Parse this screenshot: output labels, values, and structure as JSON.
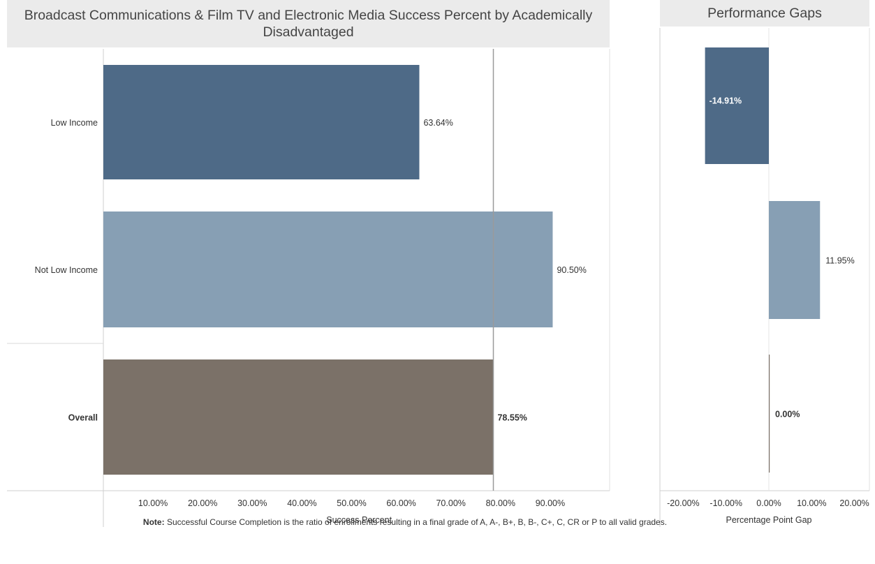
{
  "chart_data": [
    {
      "type": "bar",
      "orientation": "horizontal",
      "title": "Broadcast Communications & Film TV and Electronic Media Success Percent by Academically Disadvantaged",
      "xlabel": "Success Percent",
      "ylabel": "",
      "categories": [
        "Low Income",
        "Not Low Income",
        "Overall"
      ],
      "values": [
        63.64,
        90.5,
        78.55
      ],
      "value_labels": [
        "63.64%",
        "90.50%",
        "78.55%"
      ],
      "colors": [
        "#4e6a87",
        "#879fb4",
        "#7b7168"
      ],
      "reference_line": 78.55,
      "xlim": [
        0,
        100
      ],
      "x_ticks": [
        10,
        20,
        30,
        40,
        50,
        60,
        70,
        80,
        90
      ],
      "x_tick_labels": [
        "10.00%",
        "20.00%",
        "30.00%",
        "40.00%",
        "50.00%",
        "60.00%",
        "70.00%",
        "80.00%",
        "90.00%"
      ]
    },
    {
      "type": "bar",
      "orientation": "horizontal",
      "title": "Performance Gaps",
      "xlabel": "Percentage Point Gap",
      "ylabel": "",
      "categories": [
        "Low Income",
        "Not Low Income",
        "Overall"
      ],
      "values": [
        -14.91,
        11.95,
        0.0
      ],
      "value_labels": [
        "-14.91%",
        "11.95%",
        "0.00%"
      ],
      "colors": [
        "#4e6a87",
        "#879fb4",
        "#7b7168"
      ],
      "xlim": [
        -25,
        25
      ],
      "x_ticks": [
        -20,
        -10,
        0,
        10,
        20
      ],
      "x_tick_labels": [
        "-20.00%",
        "-10.00%",
        "0.00%",
        "10.00%",
        "20.00%"
      ]
    }
  ],
  "note": {
    "label": "Note:",
    "text": "Successful Course Completion is the ratio of enrollments resulting in a final grade of A, A-, B+, B, B-, C+, C, CR or P to all valid grades."
  }
}
